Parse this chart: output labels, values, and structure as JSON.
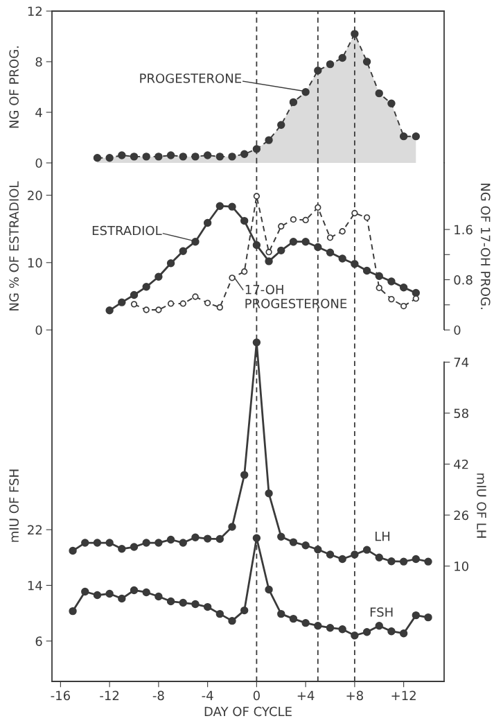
{
  "chart_data": [
    {
      "type": "area",
      "ylabel": "NG OF PROG.",
      "xlim": [
        -16.7,
        15.3
      ],
      "ylim": [
        0,
        12
      ],
      "yticks": [
        0,
        4,
        8,
        12
      ],
      "tick_labels": "y",
      "grid": false,
      "marker": "circle",
      "line_style": "dashed",
      "x": [
        -13,
        -12,
        -11,
        -10,
        -9,
        -8,
        -7,
        -6,
        -5,
        -4,
        -3,
        -2,
        -1,
        0,
        1,
        2,
        3,
        4,
        5,
        6,
        7,
        8,
        9,
        10,
        11,
        12,
        13
      ],
      "series": [
        {
          "name": "PROGESTERONE",
          "color": "#3a3a3a",
          "values": [
            0.4,
            0.4,
            0.6,
            0.5,
            0.5,
            0.5,
            0.6,
            0.5,
            0.5,
            0.6,
            0.5,
            0.5,
            0.7,
            1.1,
            1.8,
            3.0,
            4.8,
            5.6,
            7.3,
            7.8,
            8.3,
            10.2,
            8.0,
            5.5,
            4.7,
            2.1,
            2.1
          ]
        }
      ],
      "ref_lines": [
        {
          "axis": "x",
          "value": 0,
          "color": "#3a3a3a",
          "line_style": "dashed"
        },
        {
          "axis": "x",
          "value": 5,
          "color": "#3a3a3a",
          "line_style": "dashed"
        },
        {
          "axis": "x",
          "value": 8,
          "color": "#3a3a3a",
          "line_style": "dashed"
        }
      ]
    },
    {
      "type": "line",
      "ylabel": "NG % OF ESTRADIOL",
      "y2label": "NG OF 17-OH PROG.",
      "xlim": [
        -16.7,
        15.3
      ],
      "ylim": [
        0,
        24.8
      ],
      "yticks": [
        0,
        10,
        20
      ],
      "y2lim": [
        0,
        2.66
      ],
      "y2ticks": [
        0,
        {
          "value": 0.4,
          "label": null
        },
        0.8,
        {
          "value": 1.2,
          "label": null
        },
        1.6
      ],
      "tick_labels": "y",
      "grid": false,
      "marker": "circle",
      "series": [
        {
          "name": "ESTRADIOL",
          "color": "#3a3a3a",
          "line_style": "solid",
          "x": [
            -12,
            -11,
            -10,
            -9,
            -8,
            -7,
            -6,
            -5,
            -4,
            -3,
            -2,
            -1,
            0,
            1,
            2,
            3,
            4,
            5,
            6,
            7,
            8,
            9,
            10,
            11,
            12,
            13
          ],
          "values": [
            2.9,
            4.1,
            5.2,
            6.4,
            7.9,
            9.9,
            11.7,
            13.1,
            15.9,
            18.4,
            18.3,
            16.2,
            12.6,
            10.2,
            11.8,
            13.1,
            13.1,
            12.3,
            11.5,
            10.6,
            9.8,
            8.8,
            8.0,
            7.2,
            6.3,
            5.5
          ]
        },
        {
          "name": "17-OH PROGESTERONE",
          "color": "#3a3a3a",
          "line_style": "dashed",
          "marker": "circle-open",
          "axis": "y2",
          "x": [
            -10,
            -9,
            -8,
            -7,
            -6,
            -5,
            -4,
            -3,
            -2,
            -1,
            0,
            1,
            2,
            3,
            4,
            5,
            6,
            7,
            8,
            9,
            10,
            11,
            12,
            13
          ],
          "values": [
            0.41,
            0.32,
            0.32,
            0.42,
            0.42,
            0.53,
            0.43,
            0.36,
            0.83,
            0.93,
            2.13,
            1.24,
            1.65,
            1.76,
            1.75,
            1.95,
            1.47,
            1.57,
            1.86,
            1.79,
            0.67,
            0.49,
            0.38,
            0.5
          ]
        }
      ],
      "ref_lines": [
        {
          "axis": "x",
          "value": 0,
          "color": "#3a3a3a",
          "line_style": "dashed"
        },
        {
          "axis": "x",
          "value": 5,
          "color": "#3a3a3a",
          "line_style": "dashed"
        },
        {
          "axis": "x",
          "value": 8,
          "color": "#3a3a3a",
          "line_style": "dashed"
        }
      ]
    },
    {
      "type": "line",
      "xlabel": "DAY OF CYCLE",
      "ylabel": "mIU OF FSH",
      "y2label": "mIU OF LH",
      "xlim": [
        -16.7,
        15.3
      ],
      "xticks": [
        -16,
        -12,
        -8,
        -4,
        0,
        {
          "value": 4,
          "label": "+4"
        },
        {
          "value": 8,
          "label": "+8"
        },
        {
          "value": 12,
          "label": "+12"
        }
      ],
      "ylim": [
        0.2,
        50.7
      ],
      "yticks": [
        6,
        14,
        22
      ],
      "y2lim": [
        -26.2,
        84.1
      ],
      "y2ticks": [
        10,
        26,
        42,
        58,
        74
      ],
      "grid": false,
      "marker": "circle",
      "line_style": "solid",
      "x": [
        -15,
        -14,
        -13,
        -12,
        -11,
        -10,
        -9,
        -8,
        -7,
        -6,
        -5,
        -4,
        -3,
        -2,
        -1,
        0,
        1,
        2,
        3,
        4,
        5,
        6,
        7,
        8,
        9,
        10,
        11,
        12,
        13,
        14
      ],
      "series": [
        {
          "name": "LH",
          "color": "#3a3a3a",
          "axis": "y2",
          "values": [
            14.8,
            17.3,
            17.3,
            17.3,
            15.4,
            16.0,
            17.3,
            17.3,
            18.3,
            17.3,
            19.0,
            18.6,
            18.5,
            22.3,
            38.6,
            80.2,
            32.8,
            19.2,
            17.5,
            16.5,
            15.2,
            13.6,
            12.2,
            13.6,
            15.1,
            12.7,
            11.5,
            11.4,
            12.2,
            11.4
          ]
        },
        {
          "name": "FSH",
          "color": "#3a3a3a",
          "values": [
            10.3,
            13.1,
            12.6,
            12.8,
            12.1,
            13.3,
            13.0,
            12.4,
            11.7,
            11.5,
            11.3,
            10.9,
            9.9,
            8.9,
            10.4,
            20.8,
            13.4,
            9.9,
            9.2,
            8.6,
            8.2,
            7.9,
            7.7,
            6.8,
            7.3,
            8.2,
            7.4,
            7.1,
            9.7,
            9.4
          ]
        }
      ],
      "ref_lines": [
        {
          "axis": "x",
          "value": 0,
          "color": "#3a3a3a",
          "line_style": "dashed"
        },
        {
          "axis": "x",
          "value": 5,
          "color": "#3a3a3a",
          "line_style": "dashed"
        },
        {
          "axis": "x",
          "value": 8,
          "color": "#3a3a3a",
          "line_style": "dashed"
        }
      ]
    }
  ]
}
